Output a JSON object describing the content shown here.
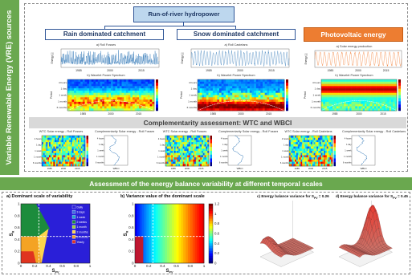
{
  "side_title": "Variable Renewable Energy (VRE) sources",
  "run_of_river": "Run-of-river hydropower",
  "rain_title": "Rain dominated catchment",
  "snow_title": "Snow dominated catchment",
  "pv_title": "Photovoltaic energy",
  "complement_title": "Complementarity assessment: WTC and WBCI",
  "energy_title": "Assessment of the energy balance variability at different temporal scales",
  "panels": {
    "rain_ts": "a) Roll Fosses",
    "rain_wps": "b) Wavelet Power Spectrum",
    "snow_ts": "a) Roll Castelans",
    "snow_wps": "b) Wavelet Power Spectrum",
    "pv_ts": "a) Solar energy production",
    "pv_wps": "b) Wavelet Power Spectrum",
    "wtc_rain": "WTC Solar energy - Roll Fosses",
    "wbci_rain": "Complementarity Solar energy - Roll Fosses",
    "wtc_snow": "WTC Solar energy - Roll Fosses",
    "wbci_snow": "Complementarity Solar energy - Roll Fosses",
    "wtc_pv": "WTC Solar energy - Roll Castelans",
    "wbci_pv": "Complementarity Solar energy - Roll Castelans"
  },
  "years": [
    "1985",
    "2000",
    "2015"
  ],
  "period_labels": [
    "4 hours",
    "1 day",
    "1 week",
    "1 month",
    "6 months"
  ],
  "ts_ylabel": "Energy [-]",
  "wps_ylabel": "Period",
  "wbci_label": "WBCI",
  "heatmap_a": {
    "title": "a)   Dominant scale of variability",
    "xlabel": "S",
    "xsub": "PV",
    "ylabel": "S",
    "ysub": "R",
    "ticks_x": [
      "0",
      "0.2",
      "0.4",
      "0.6",
      "0.8",
      "1"
    ],
    "ticks_y": [
      "0",
      "0.2",
      "0.4",
      "0.6",
      "0.8",
      "1"
    ],
    "legend": [
      "Daily",
      "3 days",
      "1 week",
      "2 weeks",
      "1 month",
      "2 months",
      "6 months",
      "Yearly"
    ]
  },
  "heatmap_b": {
    "title": "b)   Variance value of the dominant scale",
    "xlabel": "S",
    "xsub": "PV",
    "ylabel": "S",
    "ysub": "R",
    "ticks_x": [
      "0",
      "0.2",
      "0.4",
      "0.6",
      "0.8",
      "1"
    ],
    "ticks_y": [
      "0",
      "0.2",
      "0.4",
      "0.6",
      "0.8",
      "1"
    ],
    "colorbar_ticks": [
      "0",
      "0.2",
      "0.4",
      "0.6",
      "0.8",
      "1",
      "1.2"
    ]
  },
  "surface_c": {
    "title": "c) Energy balance variance for S",
    "sub": "PV",
    "suffix": " = 0.26"
  },
  "surface_d": {
    "title": "d) Energy balance variance for S",
    "sub": "PV",
    "suffix": " = 0.45"
  },
  "colors": {
    "green": "#6aa84f",
    "navy": "#2f5597",
    "orange": "#ed7d31",
    "series_blue": "#2e75b6",
    "series_orange": "#f07020"
  }
}
